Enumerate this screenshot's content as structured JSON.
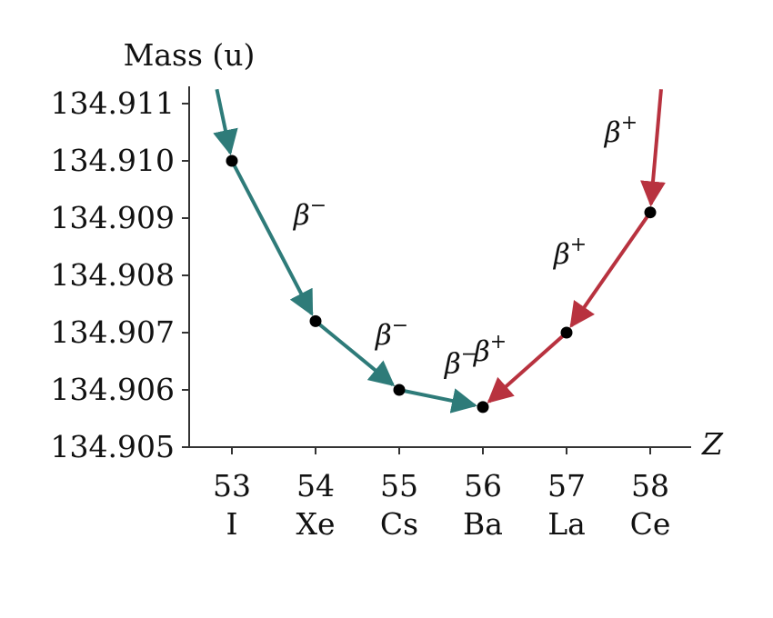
{
  "chart_data": {
    "type": "line",
    "title": "",
    "ylabel": "Mass (u)",
    "xlabel": "Z",
    "ylim": [
      134.905,
      134.911
    ],
    "yticks": [
      "134.911",
      "134.910",
      "134.909",
      "134.908",
      "134.907",
      "134.906",
      "134.905"
    ],
    "x_categories": [
      {
        "z": "53",
        "element": "I"
      },
      {
        "z": "54",
        "element": "Xe"
      },
      {
        "z": "55",
        "element": "Cs"
      },
      {
        "z": "56",
        "element": "Ba"
      },
      {
        "z": "57",
        "element": "La"
      },
      {
        "z": "58",
        "element": "Ce"
      }
    ],
    "points": [
      {
        "z": 53,
        "mass": 134.91
      },
      {
        "z": 54,
        "mass": 134.9072
      },
      {
        "z": 55,
        "mass": 134.906
      },
      {
        "z": 56,
        "mass": 134.9057
      },
      {
        "z": 57,
        "mass": 134.907
      },
      {
        "z": 58,
        "mass": 134.9091
      }
    ],
    "series": [
      {
        "color": "#2e7b79",
        "path": [
          {
            "z": 52.82,
            "mass": 134.91125
          },
          {
            "z": 53,
            "mass": 134.91
          },
          {
            "z": 54,
            "mass": 134.9072
          },
          {
            "z": 55,
            "mass": 134.906
          },
          {
            "z": 56,
            "mass": 134.9057
          }
        ],
        "labels": [
          {
            "text": "β",
            "sup": "−",
            "between": [
              53,
              54
            ]
          },
          {
            "text": "β",
            "sup": "−",
            "between": [
              54,
              55
            ]
          },
          {
            "text": "β",
            "sup": "−",
            "between": [
              55,
              56
            ]
          }
        ]
      },
      {
        "color": "#b8323f",
        "path": [
          {
            "z": 58.13,
            "mass": 134.91125
          },
          {
            "z": 58,
            "mass": 134.9091
          },
          {
            "z": 57,
            "mass": 134.907
          },
          {
            "z": 56,
            "mass": 134.9057
          }
        ],
        "labels": [
          {
            "text": "β",
            "sup": "+",
            "between": [
              58,
              58.13
            ]
          },
          {
            "text": "β",
            "sup": "+",
            "between": [
              57,
              58
            ]
          },
          {
            "text": "β",
            "sup": "+",
            "between": [
              56,
              57
            ]
          }
        ]
      }
    ],
    "grid": false
  }
}
